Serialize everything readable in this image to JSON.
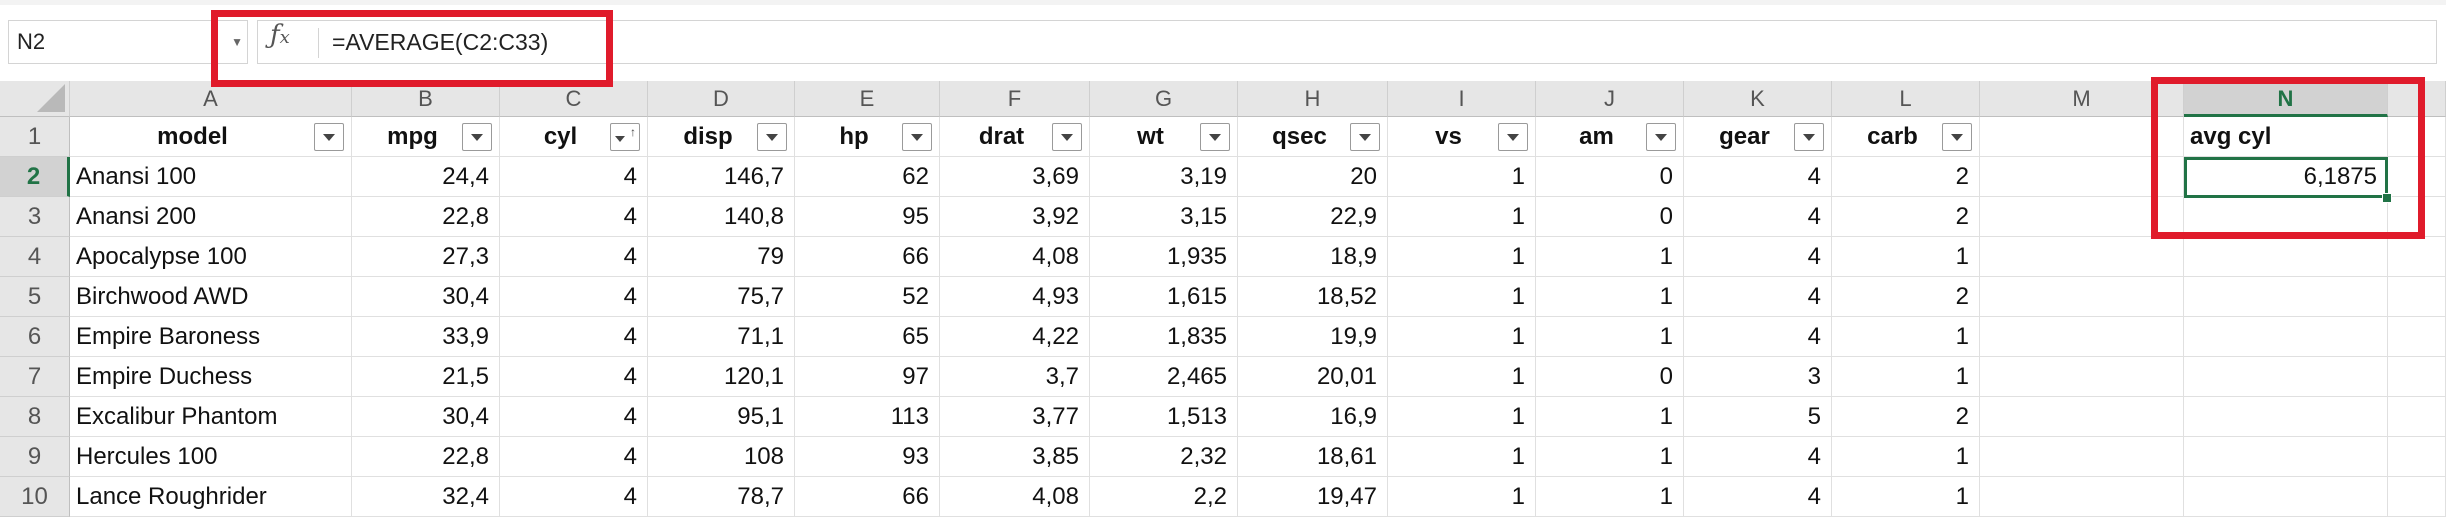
{
  "formula_bar": {
    "name_box": "N2",
    "fx_label": "fx",
    "formula": "=AVERAGE(C2:C33)"
  },
  "columns": [
    "A",
    "B",
    "C",
    "D",
    "E",
    "F",
    "G",
    "H",
    "I",
    "J",
    "K",
    "L",
    "M",
    "N"
  ],
  "rows": [
    "1",
    "2",
    "3",
    "4",
    "5",
    "6",
    "7",
    "8",
    "9",
    "10"
  ],
  "headers": [
    "model",
    "mpg",
    "cyl",
    "disp",
    "hp",
    "drat",
    "wt",
    "qsec",
    "vs",
    "am",
    "gear",
    "carb"
  ],
  "data": [
    [
      "Anansi 100",
      "24,4",
      "4",
      "146,7",
      "62",
      "3,69",
      "3,19",
      "20",
      "1",
      "0",
      "4",
      "2"
    ],
    [
      "Anansi 200",
      "22,8",
      "4",
      "140,8",
      "95",
      "3,92",
      "3,15",
      "22,9",
      "1",
      "0",
      "4",
      "2"
    ],
    [
      "Apocalypse 100",
      "27,3",
      "4",
      "79",
      "66",
      "4,08",
      "1,935",
      "18,9",
      "1",
      "1",
      "4",
      "1"
    ],
    [
      "Birchwood AWD",
      "30,4",
      "4",
      "75,7",
      "52",
      "4,93",
      "1,615",
      "18,52",
      "1",
      "1",
      "4",
      "2"
    ],
    [
      "Empire Baroness",
      "33,9",
      "4",
      "71,1",
      "65",
      "4,22",
      "1,835",
      "19,9",
      "1",
      "1",
      "4",
      "1"
    ],
    [
      "Empire Duchess",
      "21,5",
      "4",
      "120,1",
      "97",
      "3,7",
      "2,465",
      "20,01",
      "1",
      "0",
      "3",
      "1"
    ],
    [
      "Excalibur Phantom",
      "30,4",
      "4",
      "95,1",
      "113",
      "3,77",
      "1,513",
      "16,9",
      "1",
      "1",
      "5",
      "2"
    ],
    [
      "Hercules 100",
      "22,8",
      "4",
      "108",
      "93",
      "3,85",
      "2,32",
      "18,61",
      "1",
      "1",
      "4",
      "1"
    ],
    [
      "Lance Roughrider",
      "32,4",
      "4",
      "78,7",
      "66",
      "4,08",
      "2,2",
      "19,47",
      "1",
      "1",
      "4",
      "1"
    ]
  ],
  "summary": {
    "label": "avg cyl",
    "value": "6,1875"
  },
  "selected_cell": "N2",
  "accent_color": "#217346",
  "highlight_color": "#e01b2b"
}
